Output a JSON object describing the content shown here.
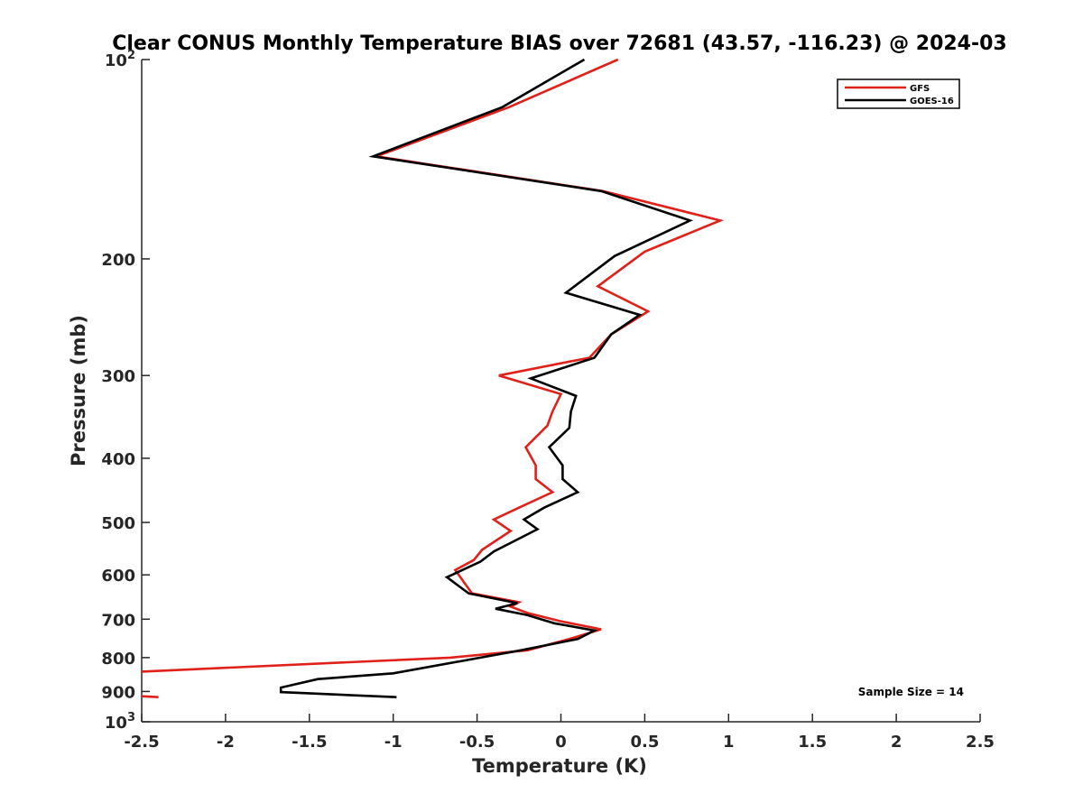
{
  "chart_data": {
    "type": "line",
    "title": "Clear CONUS Monthly Temperature BIAS over 72681 (43.57, -116.23) @ 2024-03",
    "xlabel": "Temperature (K)",
    "ylabel": "Pressure (mb)",
    "xlim": [
      -2.5,
      2.5
    ],
    "ylim": [
      100,
      1000
    ],
    "y_scale": "log",
    "y_reversed": true,
    "grid": false,
    "x_ticks": [
      -2.5,
      -2,
      -1.5,
      -1,
      -0.5,
      0,
      0.5,
      1,
      1.5,
      2,
      2.5
    ],
    "x_tick_labels": [
      "-2.5",
      "-2",
      "-1.5",
      "-1",
      "-0.5",
      "0",
      "0.5",
      "1",
      "1.5",
      "2",
      "2.5"
    ],
    "y_ticks": [
      100,
      200,
      300,
      400,
      500,
      600,
      700,
      800,
      900,
      1000
    ],
    "y_tick_labels": [
      {
        "base": "10",
        "exp": "2"
      },
      {
        "base": "200",
        "exp": ""
      },
      {
        "base": "300",
        "exp": ""
      },
      {
        "base": "400",
        "exp": ""
      },
      {
        "base": "500",
        "exp": ""
      },
      {
        "base": "600",
        "exp": ""
      },
      {
        "base": "700",
        "exp": ""
      },
      {
        "base": "800",
        "exp": ""
      },
      {
        "base": "900",
        "exp": ""
      },
      {
        "base": "10",
        "exp": "3"
      }
    ],
    "legend_position": "top-right",
    "annotation": "Sample Size = 14",
    "series": [
      {
        "name": "GFS",
        "color": "#e0211a",
        "x": [
          0.34,
          -0.31,
          -1.1,
          0.25,
          0.95,
          0.5,
          0.22,
          0.52,
          0.3,
          0.17,
          -0.37,
          0.0,
          -0.05,
          -0.08,
          -0.21,
          -0.15,
          -0.15,
          -0.05,
          -0.25,
          -0.4,
          -0.3,
          -0.47,
          -0.52,
          -0.63,
          -0.53,
          -0.25,
          -0.3,
          -0.2,
          0.0,
          0.24,
          0.05,
          -0.2,
          -0.66,
          -2.5
        ],
        "y": [
          100,
          118,
          140,
          158,
          175,
          195,
          220,
          240,
          260,
          282,
          300,
          320,
          340,
          357,
          385,
          410,
          430,
          450,
          475,
          495,
          515,
          550,
          570,
          590,
          640,
          660,
          670,
          685,
          705,
          725,
          750,
          780,
          800,
          840
        ]
      },
      {
        "name": "GFS",
        "color": "#e0211a",
        "x": [
          -2.5,
          -2.4
        ],
        "y": [
          915,
          918
        ]
      },
      {
        "name": "GOES-16",
        "color": "#000000",
        "x": [
          0.14,
          -0.35,
          -1.12,
          0.24,
          0.77,
          0.32,
          0.03,
          0.47,
          0.3,
          0.2,
          -0.18,
          0.09,
          0.06,
          0.05,
          -0.07,
          0.01,
          0.01,
          0.1,
          -0.1,
          -0.22,
          -0.14,
          -0.4,
          -0.48,
          -0.68,
          -0.55,
          -0.26,
          -0.39,
          -0.2,
          -0.04,
          0.2,
          0.1,
          -0.24,
          -0.48,
          -1.0,
          -1.45,
          -1.67,
          -1.67,
          -0.98
        ],
        "y": [
          100,
          118,
          140,
          158,
          175,
          198,
          225,
          243,
          260,
          282,
          303,
          322,
          340,
          360,
          385,
          410,
          430,
          450,
          475,
          495,
          512,
          553,
          573,
          605,
          640,
          662,
          675,
          690,
          710,
          728,
          750,
          780,
          800,
          845,
          862,
          888,
          902,
          918
        ]
      }
    ]
  }
}
